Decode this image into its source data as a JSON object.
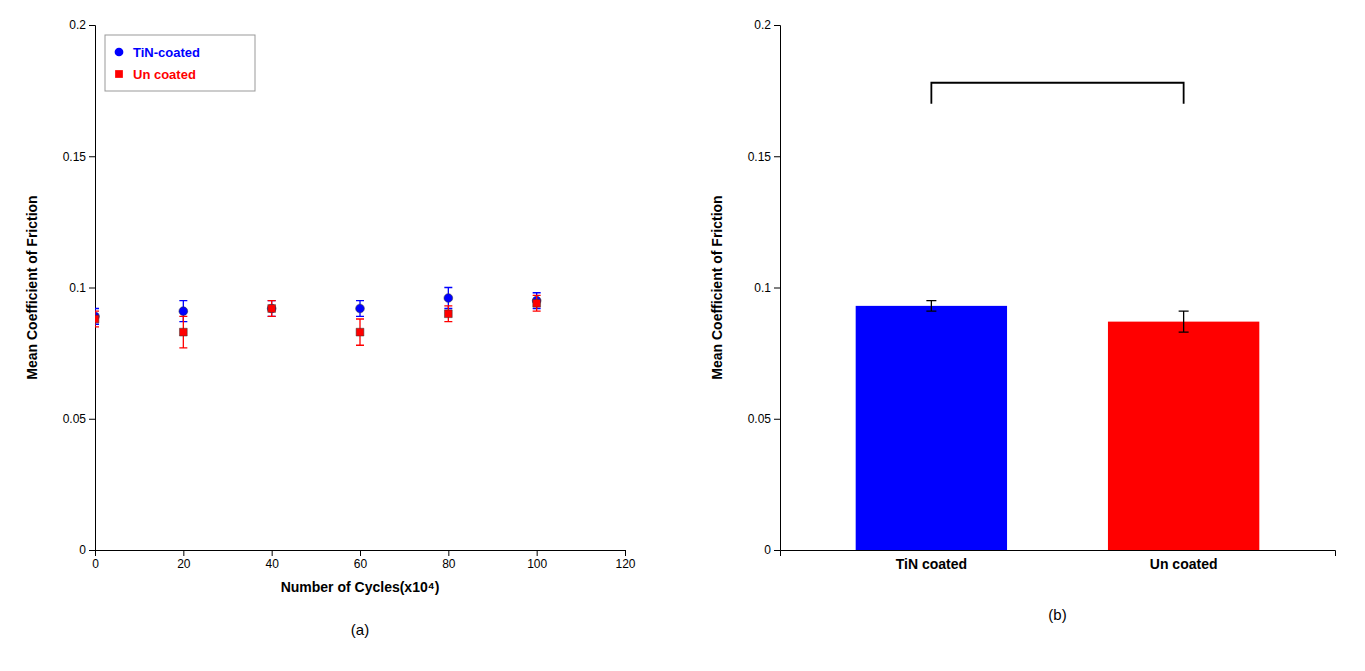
{
  "chart_data": [
    {
      "type": "scatter",
      "x": [
        0,
        20,
        40,
        60,
        80,
        100
      ],
      "series": [
        {
          "name": "TiN-coated",
          "color": "#0000ff",
          "marker": "circle",
          "values": [
            0.089,
            0.091,
            0.092,
            0.092,
            0.096,
            0.095
          ],
          "errors": [
            0.003,
            0.004,
            0.003,
            0.003,
            0.004,
            0.003
          ]
        },
        {
          "name": "Un coated",
          "color": "#ff0000",
          "marker": "square",
          "values": [
            0.088,
            0.083,
            0.092,
            0.083,
            0.09,
            0.094
          ],
          "errors": [
            0.003,
            0.006,
            0.003,
            0.005,
            0.003,
            0.003
          ]
        }
      ],
      "xlabel": "Number of Cycles(x10⁴)",
      "ylabel": "Mean Coefficient of Friction",
      "xlim": [
        0,
        120
      ],
      "ylim": [
        0,
        0.2
      ],
      "xticks": [
        0,
        20,
        40,
        60,
        80,
        100,
        120
      ],
      "yticks": [
        0,
        0.05,
        0.1,
        0.15,
        0.2
      ],
      "legend": "upper left",
      "grid": false,
      "annotation": "(a)"
    },
    {
      "type": "bar",
      "categories": [
        "TiN coated",
        "Un coated"
      ],
      "values": [
        0.093,
        0.087
      ],
      "errors": [
        0.002,
        0.004
      ],
      "colors": [
        "#0000ff",
        "#ff0000"
      ],
      "ylabel": "Mean Coefficient of Friction",
      "ylim": [
        0,
        0.2
      ],
      "yticks": [
        0,
        0.05,
        0.1,
        0.15,
        0.2
      ],
      "grid": false,
      "bracket": {
        "y": 0.178,
        "drop": 0.008
      },
      "annotation": "(b)"
    }
  ]
}
